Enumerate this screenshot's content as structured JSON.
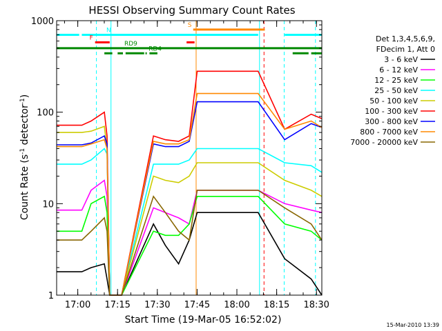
{
  "chart_data": {
    "type": "line",
    "title": "HESSI Observing Summary Count Rates",
    "xlabel": "Start Time (19-Mar-05 16:52:02)",
    "ylabel": "Count Rate (s⁻¹ detector⁻¹)",
    "ylabel_parts": {
      "main": "Count Rate (s",
      "sup1": "-1",
      "mid": " detector",
      "sup2": "-1",
      "end": ")"
    },
    "footer": "15-Mar-2010 13:39",
    "x_unit": "minutes after 16:52:02",
    "xlim": [
      0,
      100
    ],
    "ylim": [
      1,
      1000
    ],
    "yscale": "log",
    "x_ticks": [
      {
        "label": "17:00",
        "value": 7.97
      },
      {
        "label": "17:15",
        "value": 22.97
      },
      {
        "label": "17:30",
        "value": 37.97
      },
      {
        "label": "17:45",
        "value": 52.97
      },
      {
        "label": "18:00",
        "value": 67.97
      },
      {
        "label": "18:15",
        "value": 82.97
      },
      {
        "label": "18:30",
        "value": 97.97
      }
    ],
    "y_ticks": [
      {
        "label": "1",
        "value": 1
      },
      {
        "label": "10",
        "value": 10
      },
      {
        "label": "100",
        "value": 100
      },
      {
        "label": "1000",
        "value": 1000
      }
    ],
    "legend": {
      "header": [
        "Det 1,3,4,5,6,9,",
        "FDecim 1, Att 0"
      ],
      "placement": "right"
    },
    "series": [
      {
        "name": "3 - 6 keV",
        "color": "#000000",
        "x": [
          0,
          9.5,
          13,
          18,
          19,
          20,
          24.5,
          36.5,
          41,
          46,
          50,
          53,
          76,
          86,
          96,
          100
        ],
        "y": [
          1.8,
          1.8,
          2,
          2.2,
          1.5,
          1,
          1,
          6,
          3.5,
          2.2,
          4,
          8,
          8,
          2.5,
          1.5,
          1
        ]
      },
      {
        "name": "6 - 12 keV",
        "color": "#ff00ff",
        "x": [
          0,
          9.5,
          13,
          18,
          19,
          20,
          24.5,
          36.5,
          41,
          46,
          50,
          53,
          76,
          86,
          96,
          100
        ],
        "y": [
          8.5,
          8.5,
          14,
          18,
          12,
          1,
          1,
          9,
          8,
          7,
          6,
          14,
          14,
          10,
          8.5,
          8
        ]
      },
      {
        "name": "12 - 25 keV",
        "color": "#00ff00",
        "x": [
          0,
          9.5,
          13,
          18,
          19,
          20,
          24.5,
          36.5,
          41,
          46,
          50,
          53,
          76,
          86,
          96,
          100
        ],
        "y": [
          5,
          5,
          10,
          12,
          8,
          1,
          1,
          5,
          4.5,
          4.5,
          6,
          12,
          12,
          6,
          5,
          4
        ]
      },
      {
        "name": "25 - 50 keV",
        "color": "#00ffff",
        "x": [
          0,
          9.5,
          13,
          18,
          19,
          20,
          24.5,
          36.5,
          41,
          46,
          50,
          53,
          76,
          86,
          96,
          100
        ],
        "y": [
          27,
          27,
          30,
          40,
          35,
          1,
          1,
          27,
          27,
          27,
          30,
          40,
          40,
          28,
          26,
          22
        ]
      },
      {
        "name": "50 - 100 keV",
        "color": "#cccc00",
        "x": [
          0,
          9.5,
          13,
          18,
          19,
          20,
          24.5,
          36.5,
          41,
          46,
          50,
          53,
          76,
          86,
          96,
          100
        ],
        "y": [
          60,
          60,
          62,
          70,
          40,
          1,
          1,
          20,
          18,
          17,
          20,
          28,
          28,
          18,
          14,
          12
        ]
      },
      {
        "name": "100 - 300 keV",
        "color": "#ff0000",
        "x": [
          0,
          9.5,
          13,
          18,
          19,
          20,
          24.5,
          36.5,
          41,
          46,
          50,
          53,
          76,
          86,
          96,
          100
        ],
        "y": [
          72,
          72,
          80,
          100,
          55,
          1,
          1,
          55,
          50,
          48,
          55,
          280,
          280,
          65,
          95,
          85
        ]
      },
      {
        "name": "300 - 800 keV",
        "color": "#0000ff",
        "x": [
          0,
          9.5,
          13,
          18,
          19,
          20,
          24.5,
          36.5,
          41,
          46,
          50,
          53,
          76,
          86,
          96,
          100
        ],
        "y": [
          44,
          44,
          46,
          55,
          45,
          1,
          1,
          45,
          42,
          42,
          48,
          130,
          130,
          50,
          75,
          68
        ]
      },
      {
        "name": "800 - 7000 keV",
        "color": "#ff8800",
        "x": [
          0,
          9.5,
          13,
          18,
          19,
          20,
          24.5,
          36.5,
          41,
          46,
          50,
          53,
          76,
          86,
          96,
          100
        ],
        "y": [
          42,
          42,
          45,
          50,
          40,
          1,
          1,
          48,
          45,
          45,
          50,
          160,
          160,
          65,
          80,
          68
        ]
      },
      {
        "name": "7000 - 20000 keV",
        "color": "#886600",
        "x": [
          0,
          9.5,
          13,
          18,
          19,
          20,
          24.5,
          36.5,
          41,
          46,
          50,
          53,
          76,
          86,
          96,
          100
        ],
        "y": [
          4,
          4,
          5,
          7,
          5,
          1,
          1,
          12,
          8,
          5,
          4,
          14,
          14,
          9,
          6,
          4
        ]
      }
    ],
    "flag_bars": [
      {
        "label": "N",
        "color": "#00ffff",
        "y": 700,
        "segments": [
          [
            0,
            8.5
          ],
          [
            9.5,
            76
          ],
          [
            86,
            100
          ]
        ]
      },
      {
        "label": "S",
        "color": "#ff8800",
        "y": 800,
        "segments": [
          [
            51.5,
            78.5
          ]
        ]
      },
      {
        "label": "F",
        "color": "#ff0000",
        "y": 580,
        "segments": [
          [
            14.5,
            20
          ],
          [
            49,
            52
          ]
        ]
      },
      {
        "label": "RD9",
        "color": "#008800",
        "y": 500,
        "segments": [
          [
            0,
            100
          ]
        ]
      },
      {
        "label": "RD4",
        "color": "#008800",
        "y": 440,
        "segments": [
          [
            18,
            21
          ],
          [
            23,
            25
          ],
          [
            26,
            33
          ],
          [
            33.5,
            34
          ],
          [
            35,
            38
          ],
          [
            89,
            95
          ],
          [
            96,
            100
          ]
        ]
      }
    ],
    "interval_lines": [
      {
        "x": 0,
        "color": "#00ffff",
        "style": "solid"
      },
      {
        "x": 15.0,
        "color": "#00ffff",
        "style": "dashed"
      },
      {
        "x": 20.5,
        "color": "#00ffff",
        "style": "solid"
      },
      {
        "x": 52.6,
        "color": "#ff8800",
        "style": "solid"
      },
      {
        "x": 76.5,
        "color": "#00ffff",
        "style": "solid"
      },
      {
        "x": 78.2,
        "color": "#ff0000",
        "style": "dashed"
      },
      {
        "x": 85.8,
        "color": "#00ffff",
        "style": "dashed"
      },
      {
        "x": 97.6,
        "color": "#00ffff",
        "style": "dashed"
      }
    ]
  }
}
